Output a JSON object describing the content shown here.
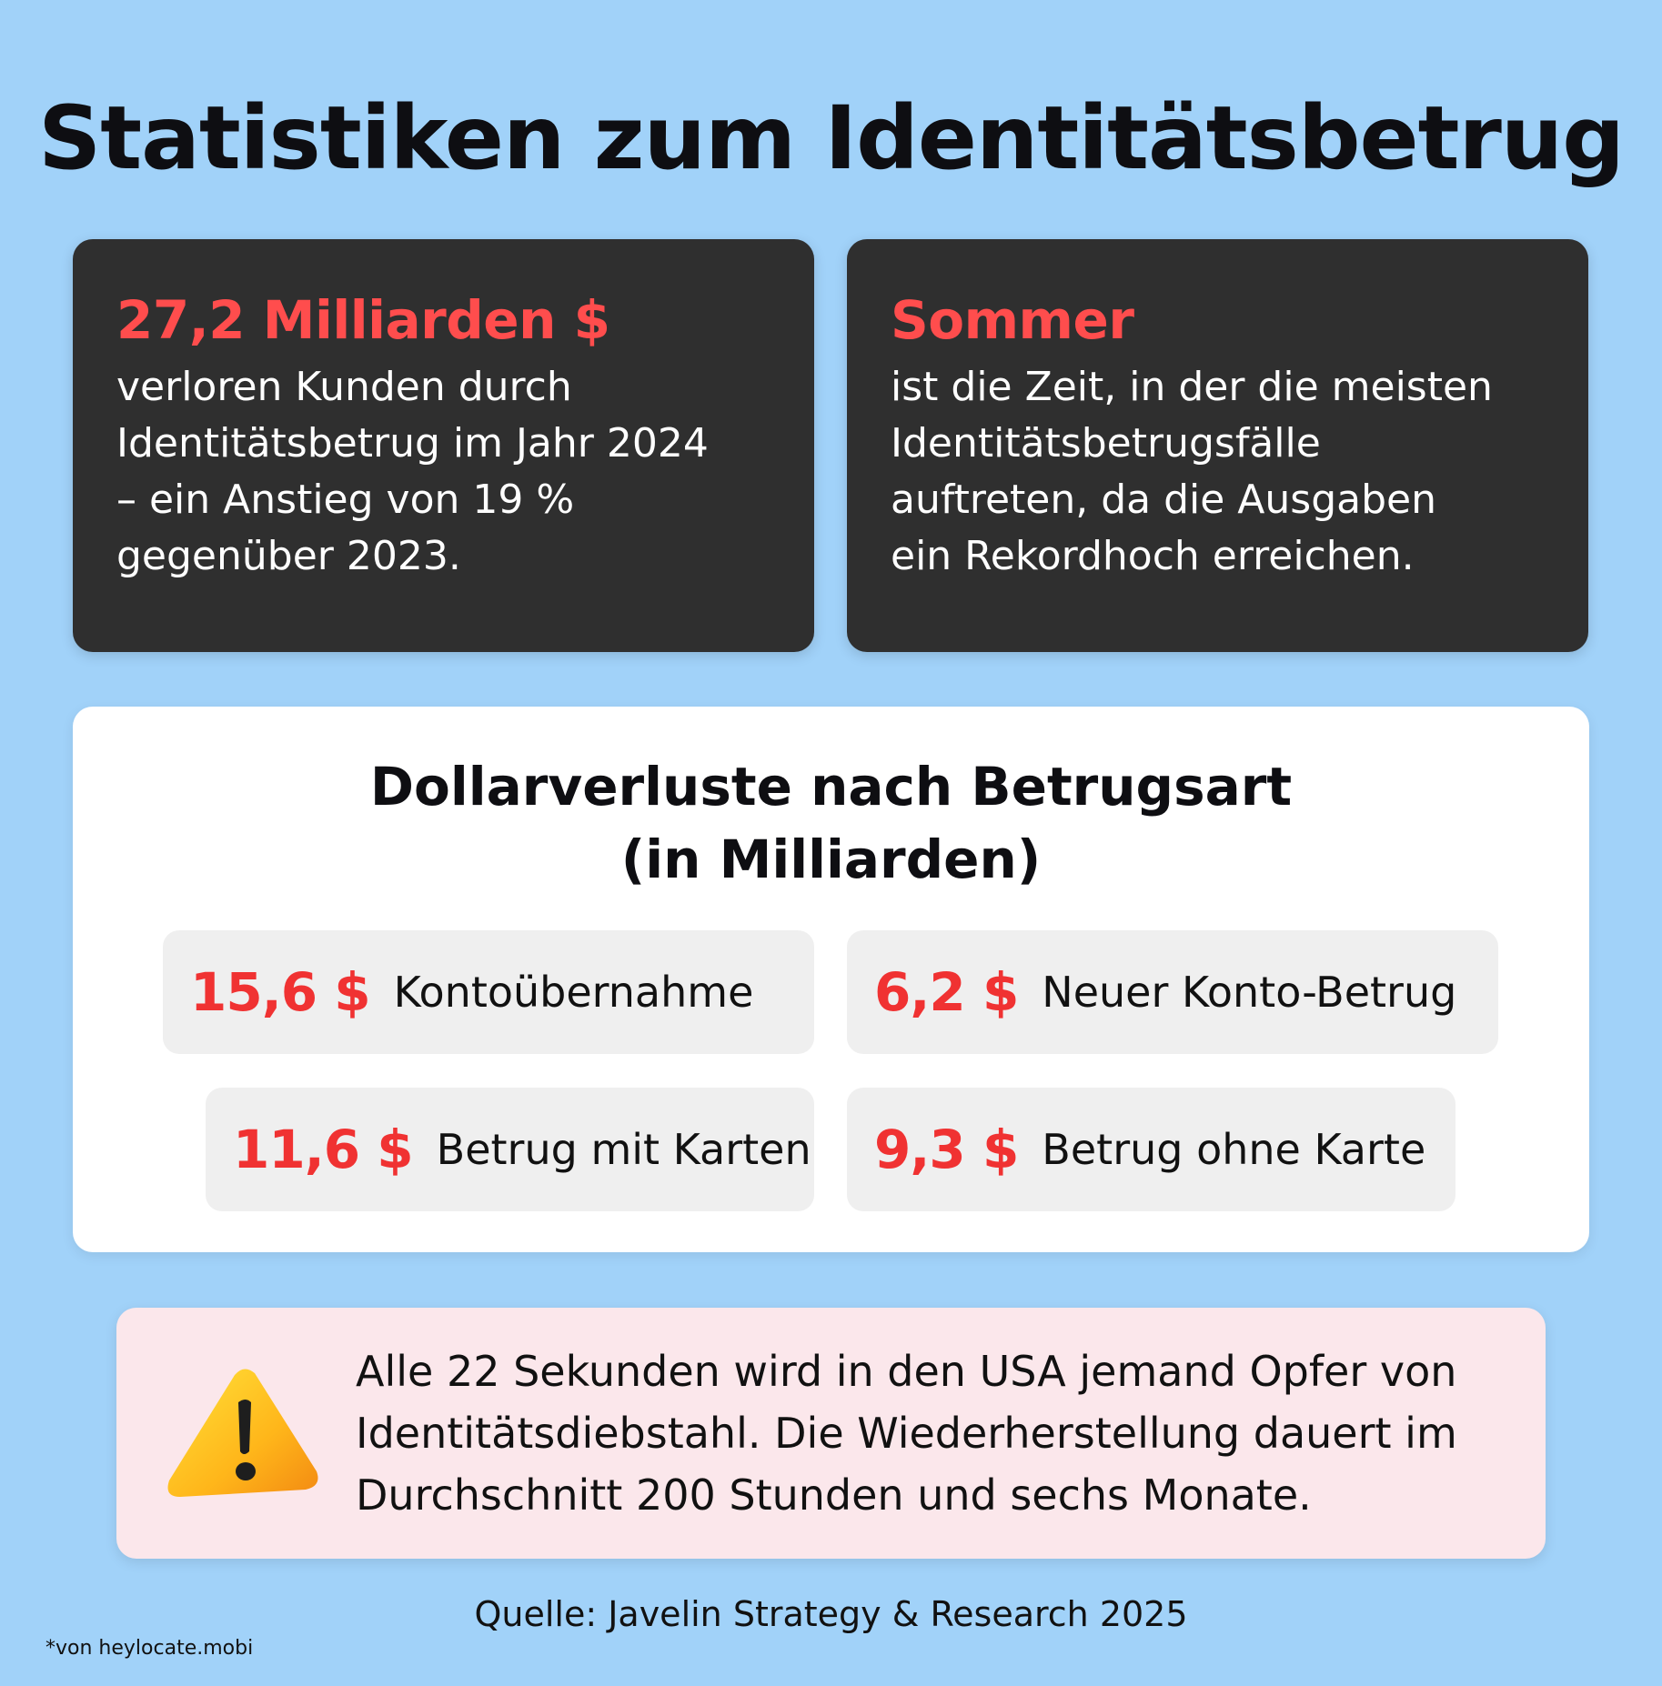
{
  "title": "Statistiken zum Identitätsbetrug",
  "colors": {
    "background": "#a1d2f9",
    "dark_card": "#2f2f2f",
    "accent_red": "#f03232",
    "pill_bg": "#efefef",
    "alert_bg": "#fbe7eb"
  },
  "cards": [
    {
      "headline": "27,2 Milliarden $",
      "body": "verloren Kunden durch\nIdentitätsbetrug im Jahr 2024\n– ein Anstieg von 19 %\ngegenüber 2023."
    },
    {
      "headline": "Sommer",
      "body": "ist die Zeit, in der die meisten\nIdentitätsbetrugsfälle\nauftreten, da die Ausgaben\nein Rekordhoch erreichen."
    }
  ],
  "losses": {
    "title": "Dollarverluste nach Betrugsart\n(in Milliarden)",
    "items": [
      {
        "value": "15,6 $",
        "label": "Kontoübernahme"
      },
      {
        "value": "6,2 $",
        "label": "Neuer Konto-Betrug"
      },
      {
        "value": "11,6 $",
        "label": "Betrug mit Karten"
      },
      {
        "value": "9,3 $",
        "label": "Betrug ohne Karte"
      }
    ]
  },
  "alert": {
    "icon": "warning-icon",
    "text": "Alle 22 Sekunden wird in den USA jemand Opfer von Identitätsdiebstahl. Die Wiederherstellung dauert im Durchschnitt 200 Stunden und sechs Monate."
  },
  "source": "Quelle: Javelin Strategy & Research 2025",
  "credit": "*von heylocate.mobi"
}
